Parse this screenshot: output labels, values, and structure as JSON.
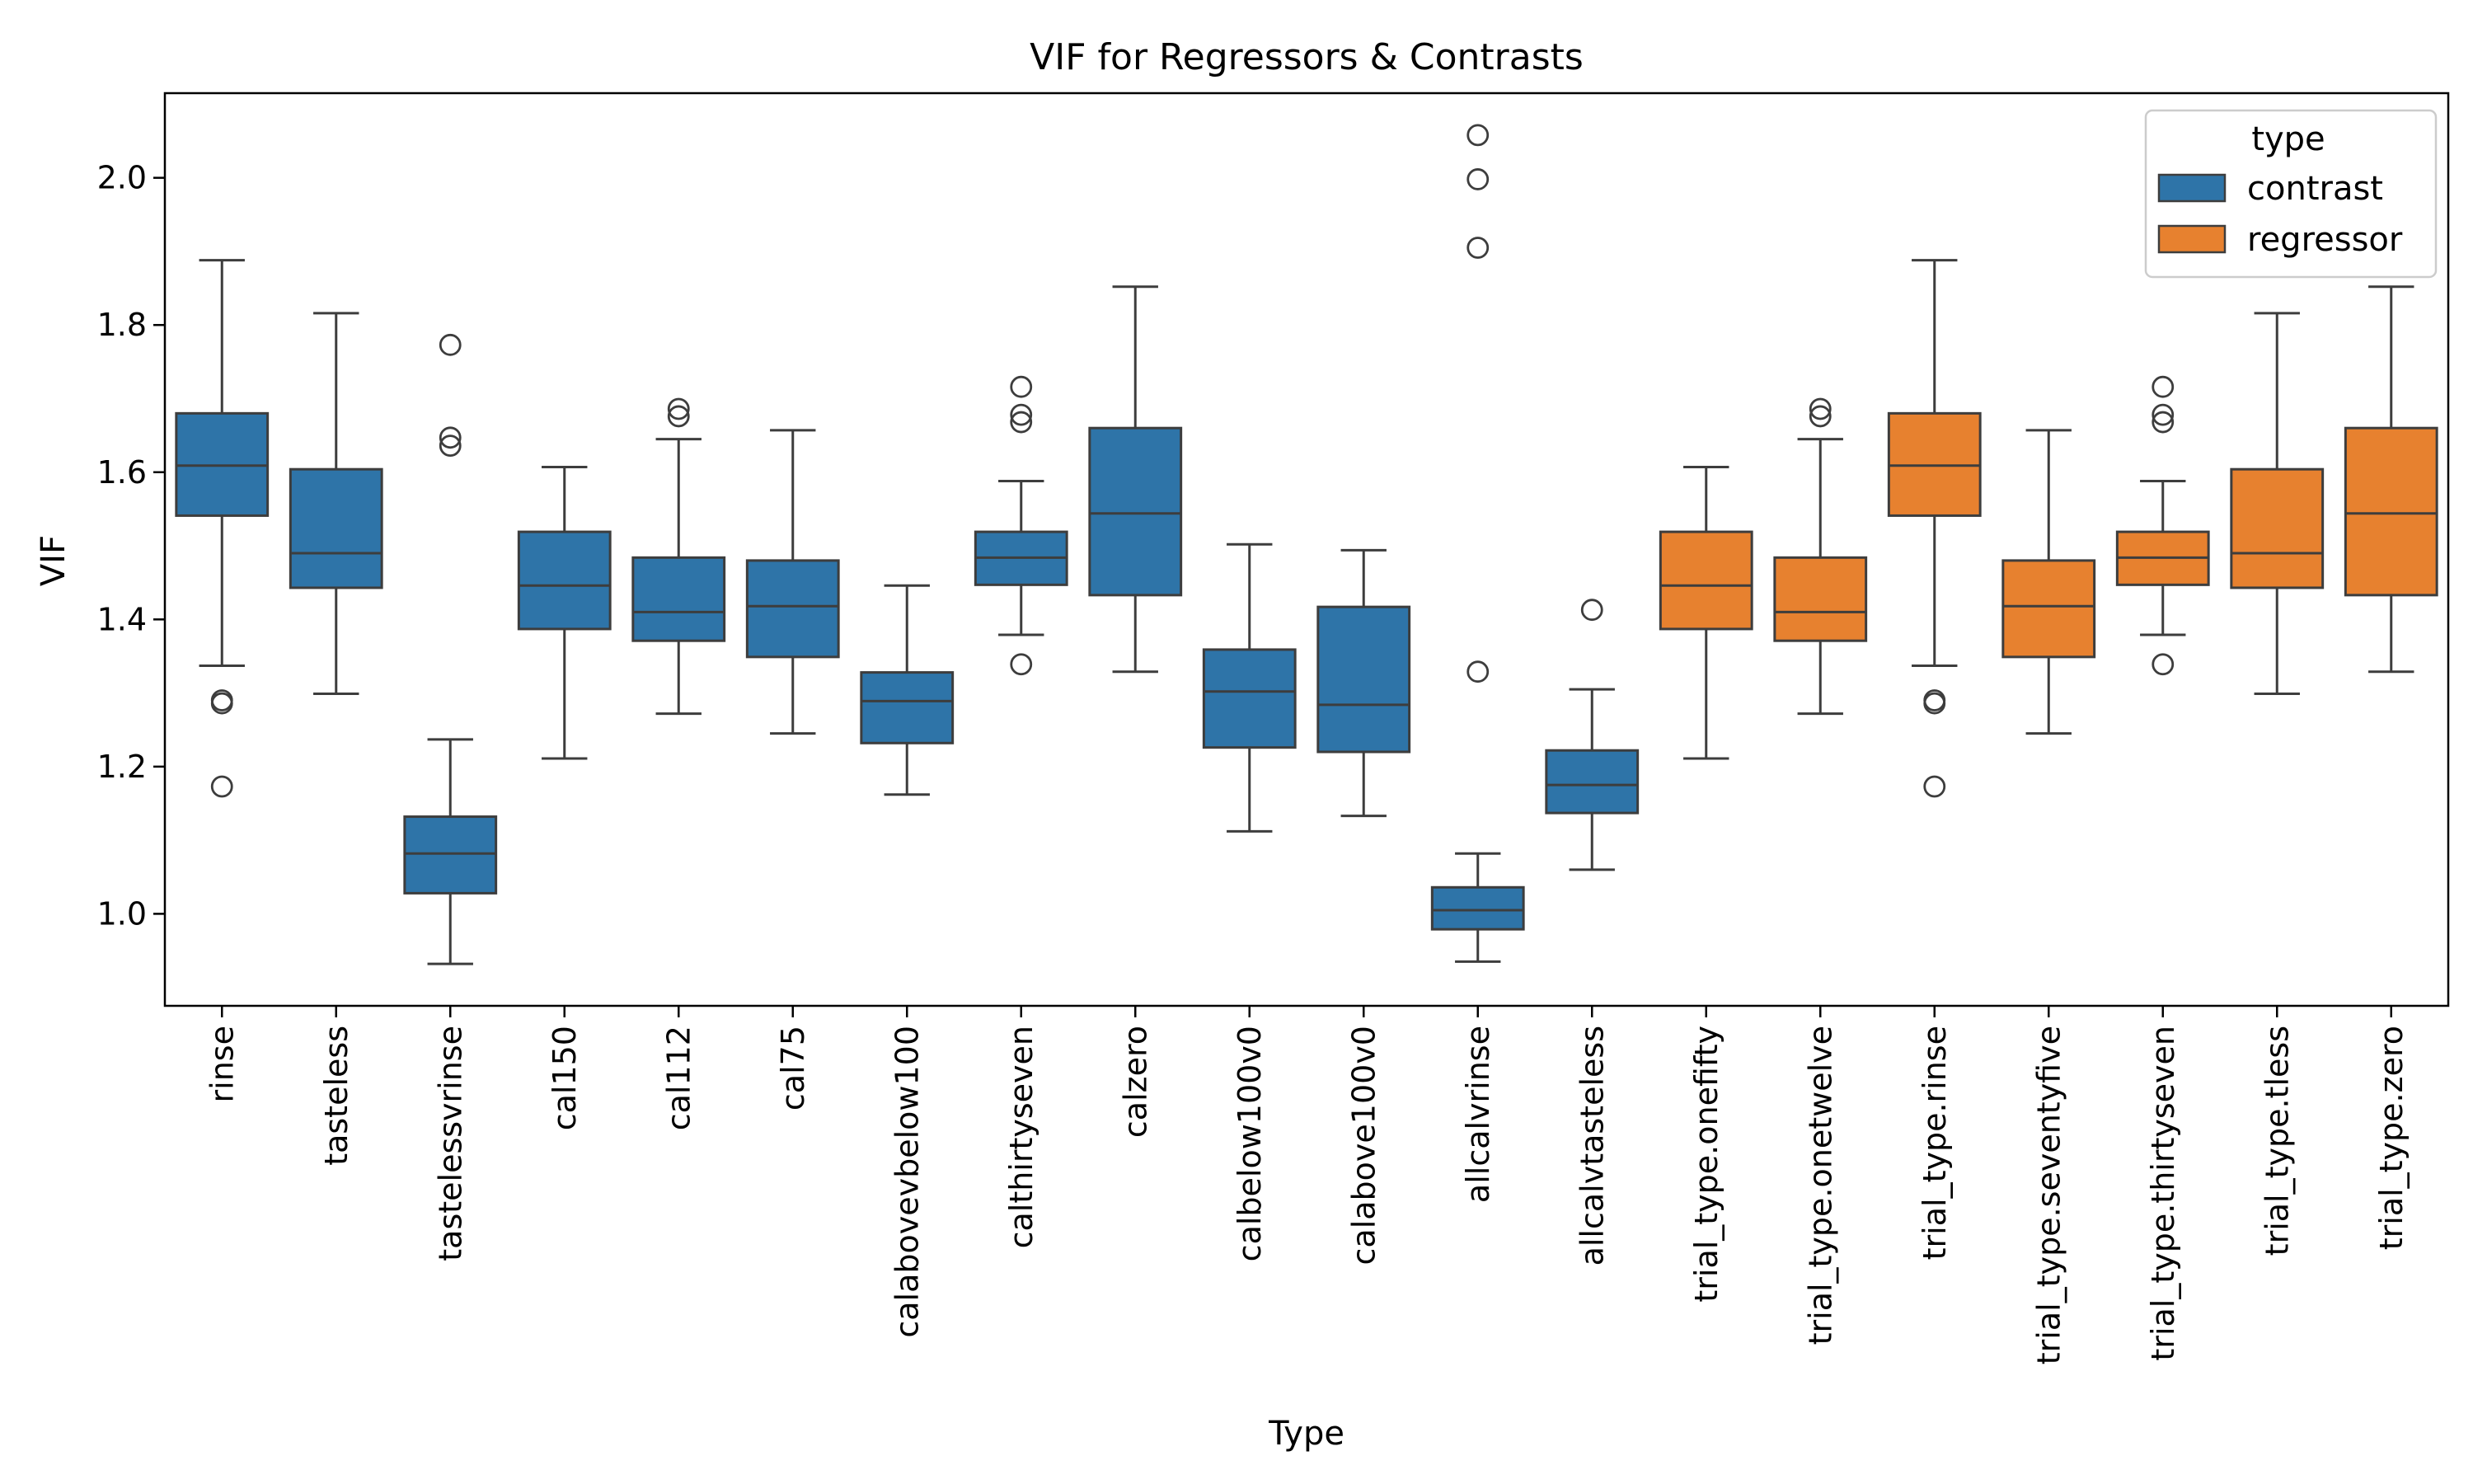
{
  "chart_data": {
    "type": "box",
    "title": "VIF for Regressors & Contrasts",
    "xlabel": "Type",
    "ylabel": "VIF",
    "ylim": [
      0.875,
      2.115
    ],
    "yticks": [
      1.0,
      1.2,
      1.4,
      1.6,
      1.8,
      2.0
    ],
    "ytick_labels": [
      "1.0",
      "1.2",
      "1.4",
      "1.6",
      "1.8",
      "2.0"
    ],
    "grid": false,
    "legend": {
      "title": "type",
      "placement": "top-right",
      "entries": [
        {
          "label": "contrast",
          "color": "#1f77b4"
        },
        {
          "label": "regressor",
          "color": "#ff7f0e"
        }
      ]
    },
    "colors": {
      "contrast": "#2e74a8",
      "regressor": "#e7812f",
      "line": "#3d3d3d"
    },
    "boxes": [
      {
        "category": "rinse",
        "type": "contrast",
        "whislo": 1.337,
        "q1": 1.541,
        "median": 1.609,
        "q3": 1.68,
        "whishi": 1.888,
        "fliers": [
          1.29,
          1.286,
          1.173
        ]
      },
      {
        "category": "tasteless",
        "type": "contrast",
        "whislo": 1.299,
        "q1": 1.443,
        "median": 1.49,
        "q3": 1.604,
        "whishi": 1.816,
        "fliers": []
      },
      {
        "category": "tastelessvrinse",
        "type": "contrast",
        "whislo": 0.932,
        "q1": 1.028,
        "median": 1.082,
        "q3": 1.132,
        "whishi": 1.237,
        "fliers": [
          1.773,
          1.647,
          1.636
        ]
      },
      {
        "category": "cal150",
        "type": "contrast",
        "whislo": 1.211,
        "q1": 1.387,
        "median": 1.446,
        "q3": 1.519,
        "whishi": 1.607,
        "fliers": []
      },
      {
        "category": "cal112",
        "type": "contrast",
        "whislo": 1.272,
        "q1": 1.371,
        "median": 1.41,
        "q3": 1.484,
        "whishi": 1.645,
        "fliers": [
          1.686,
          1.676
        ]
      },
      {
        "category": "cal75",
        "type": "contrast",
        "whislo": 1.245,
        "q1": 1.349,
        "median": 1.418,
        "q3": 1.48,
        "whishi": 1.657,
        "fliers": []
      },
      {
        "category": "calabovevbelow100",
        "type": "contrast",
        "whislo": 1.162,
        "q1": 1.232,
        "median": 1.289,
        "q3": 1.328,
        "whishi": 1.446,
        "fliers": []
      },
      {
        "category": "calthirtyseven",
        "type": "contrast",
        "whislo": 1.379,
        "q1": 1.447,
        "median": 1.484,
        "q3": 1.519,
        "whishi": 1.588,
        "fliers": [
          1.716,
          1.678,
          1.668,
          1.339
        ]
      },
      {
        "category": "calzero",
        "type": "contrast",
        "whislo": 1.329,
        "q1": 1.433,
        "median": 1.544,
        "q3": 1.66,
        "whishi": 1.852,
        "fliers": []
      },
      {
        "category": "calbelow100v0",
        "type": "contrast",
        "whislo": 1.112,
        "q1": 1.226,
        "median": 1.302,
        "q3": 1.359,
        "whishi": 1.502,
        "fliers": []
      },
      {
        "category": "calabove100v0",
        "type": "contrast",
        "whislo": 1.133,
        "q1": 1.22,
        "median": 1.284,
        "q3": 1.417,
        "whishi": 1.494,
        "fliers": []
      },
      {
        "category": "allcalvrinse",
        "type": "contrast",
        "whislo": 0.935,
        "q1": 0.979,
        "median": 1.005,
        "q3": 1.036,
        "whishi": 1.082,
        "fliers": [
          2.058,
          1.998,
          1.905,
          1.329
        ]
      },
      {
        "category": "allcalvtasteless",
        "type": "contrast",
        "whislo": 1.06,
        "q1": 1.137,
        "median": 1.175,
        "q3": 1.222,
        "whishi": 1.305,
        "fliers": [
          1.413
        ]
      },
      {
        "category": "trial_type.onefifty",
        "type": "regressor",
        "whislo": 1.211,
        "q1": 1.387,
        "median": 1.446,
        "q3": 1.519,
        "whishi": 1.607,
        "fliers": []
      },
      {
        "category": "trial_type.onetwelve",
        "type": "regressor",
        "whislo": 1.272,
        "q1": 1.371,
        "median": 1.41,
        "q3": 1.484,
        "whishi": 1.645,
        "fliers": [
          1.686,
          1.676
        ]
      },
      {
        "category": "trial_type.rinse",
        "type": "regressor",
        "whislo": 1.337,
        "q1": 1.541,
        "median": 1.609,
        "q3": 1.68,
        "whishi": 1.888,
        "fliers": [
          1.29,
          1.286,
          1.173
        ]
      },
      {
        "category": "trial_type.seventyfive",
        "type": "regressor",
        "whislo": 1.245,
        "q1": 1.349,
        "median": 1.418,
        "q3": 1.48,
        "whishi": 1.657,
        "fliers": []
      },
      {
        "category": "trial_type.thirtyseven",
        "type": "regressor",
        "whislo": 1.379,
        "q1": 1.447,
        "median": 1.484,
        "q3": 1.519,
        "whishi": 1.588,
        "fliers": [
          1.716,
          1.678,
          1.668,
          1.339
        ]
      },
      {
        "category": "trial_type.tless",
        "type": "regressor",
        "whislo": 1.299,
        "q1": 1.443,
        "median": 1.49,
        "q3": 1.604,
        "whishi": 1.816,
        "fliers": []
      },
      {
        "category": "trial_type.zero",
        "type": "regressor",
        "whislo": 1.329,
        "q1": 1.433,
        "median": 1.544,
        "q3": 1.66,
        "whishi": 1.852,
        "fliers": []
      }
    ]
  }
}
